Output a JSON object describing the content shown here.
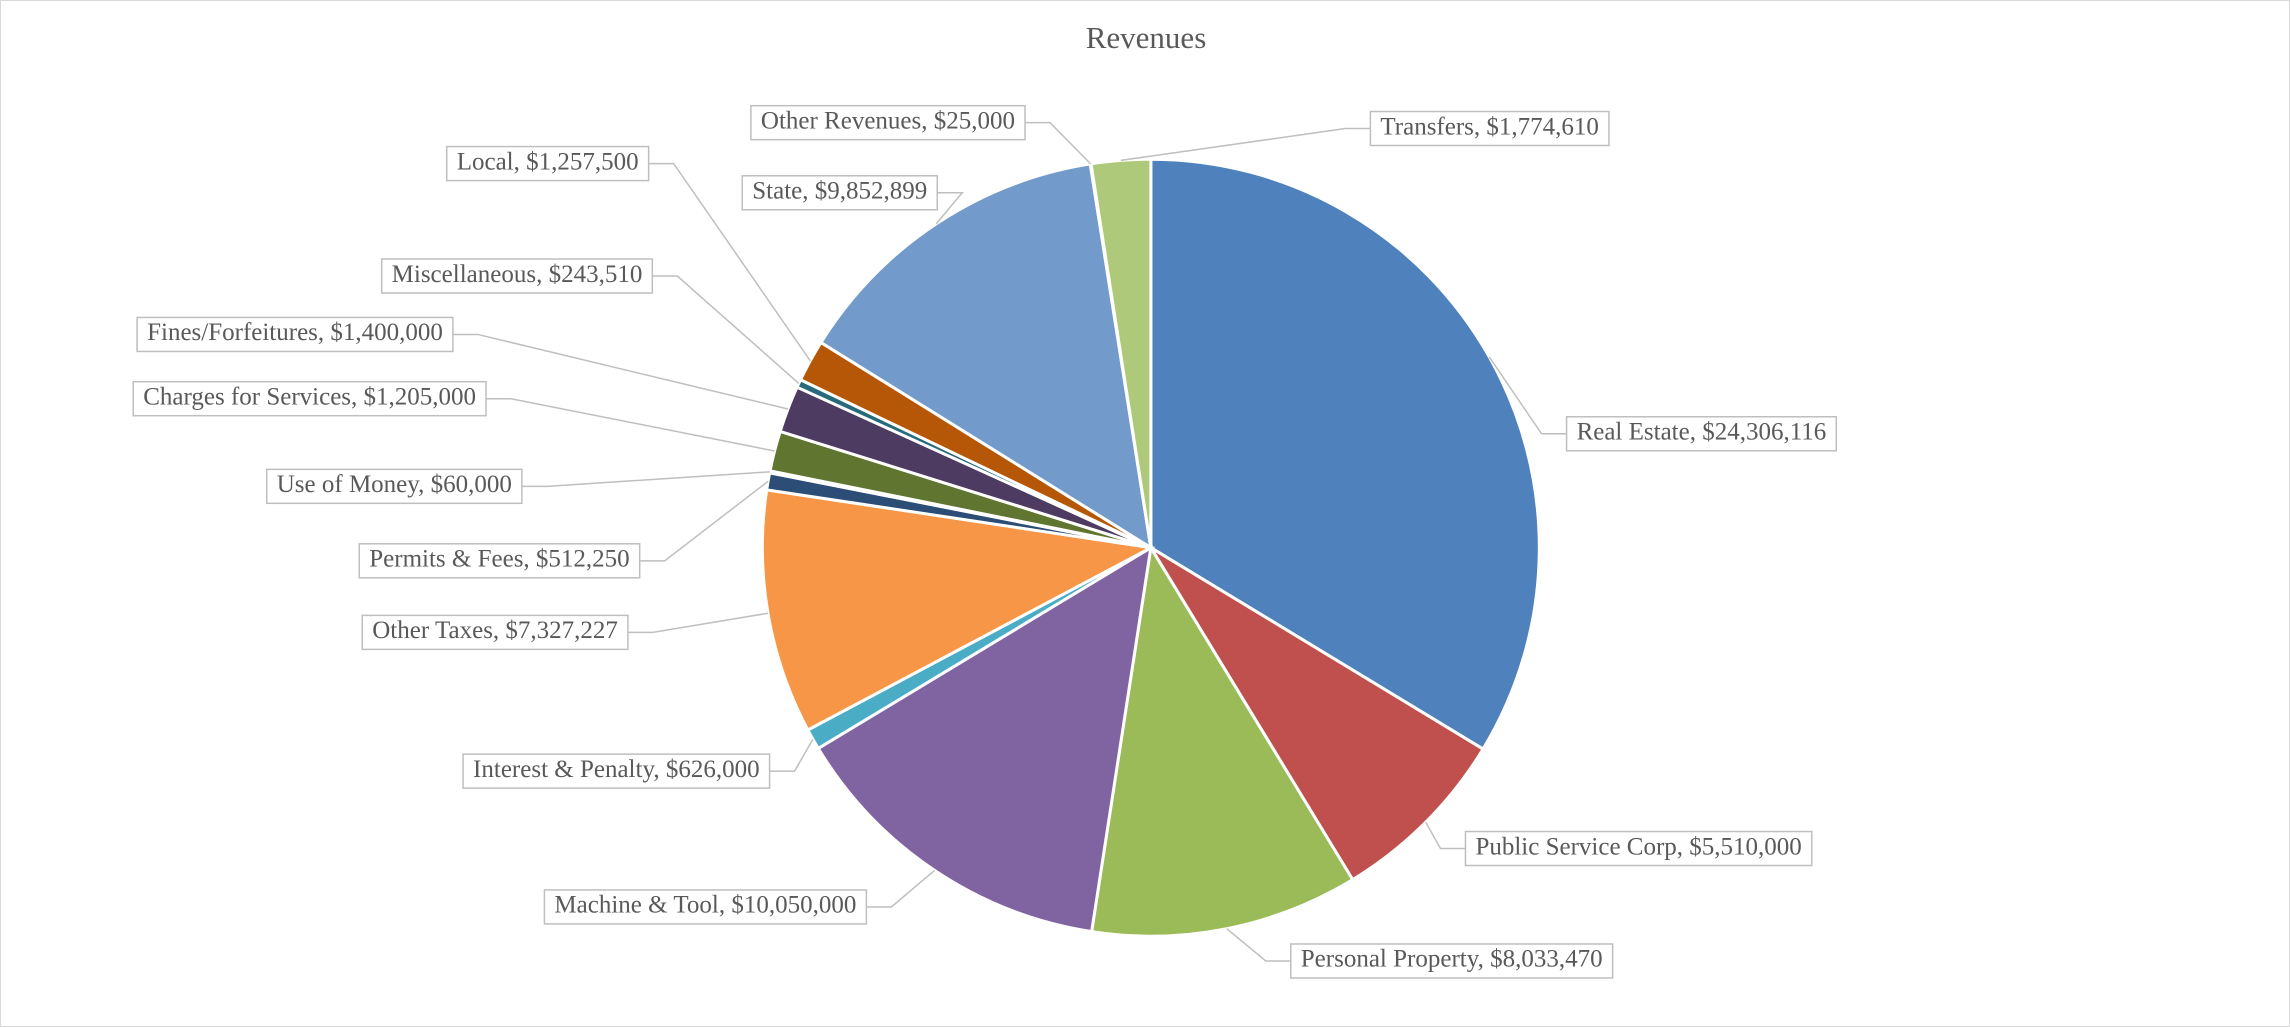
{
  "chart_data": {
    "type": "pie",
    "title": "Revenues",
    "categories": [
      "Real Estate",
      "Public Service Corp",
      "Personal Property",
      "Machine & Tool",
      "Interest & Penalty",
      "Other Taxes",
      "Permits & Fees",
      "Use of Money",
      "Charges for Services",
      "Fines/Forfeitures",
      "Miscellaneous",
      "Local",
      "State",
      "Other Revenues",
      "Transfers"
    ],
    "values": [
      24306116,
      5510000,
      8033470,
      10050000,
      626000,
      7327227,
      512250,
      60000,
      1205000,
      1400000,
      243510,
      1257500,
      9852899,
      25000,
      1774610
    ],
    "value_labels": [
      "Real Estate,  $24,306,116",
      "Public Service Corp,  $5,510,000",
      "Personal Property,  $8,033,470",
      "Machine & Tool,  $10,050,000",
      "Interest & Penalty,  $626,000",
      "Other Taxes,  $7,327,227",
      "Permits & Fees,  $512,250",
      "Use of Money,  $60,000",
      "Charges for Services,  $1,205,000",
      "Fines/Forfeitures,  $1,400,000",
      "Miscellaneous,  $243,510",
      "Local,  $1,257,500",
      "State,  $9,852,899",
      "Other Revenues,  $25,000",
      "Transfers,  $1,774,610"
    ],
    "colors": [
      "#4f81bd",
      "#c0504d",
      "#9bbb59",
      "#8064a2",
      "#4bacc6",
      "#f79646",
      "#2c4d75",
      "#772c2a",
      "#5f7530",
      "#4d3b62",
      "#276a7c",
      "#b65708",
      "#729aca",
      "#c4bd97",
      "#afc97a"
    ]
  }
}
